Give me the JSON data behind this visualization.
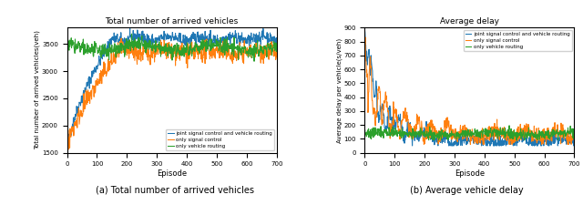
{
  "left_title": "Total number of arrived vehicles",
  "left_ylabel": "Total number of arrived vehicles(veh)",
  "left_xlabel": "Episode",
  "left_ylim": [
    1500,
    3800
  ],
  "left_yticks": [
    1500,
    2000,
    2500,
    3000,
    3500
  ],
  "right_title": "Average delay",
  "right_ylabel": "Average delay per vehicle(s/veh)",
  "right_xlabel": "Episode",
  "right_ylim": [
    0,
    900
  ],
  "right_yticks": [
    0,
    100,
    200,
    300,
    400,
    500,
    600,
    700,
    800,
    900
  ],
  "xlim": [
    0,
    700
  ],
  "xticks": [
    0,
    100,
    200,
    300,
    400,
    500,
    600,
    700
  ],
  "color_joint": "#1f77b4",
  "color_signal": "#ff7f0e",
  "color_routing": "#2ca02c",
  "legend_labels": [
    "joint signal control and vehicle routing",
    "only signal control",
    "only vehicle routing"
  ],
  "caption_left": "(a) Total number of arrived vehicles",
  "caption_right": "(b) Average vehicle delay",
  "n_episodes": 700,
  "seed": 42
}
